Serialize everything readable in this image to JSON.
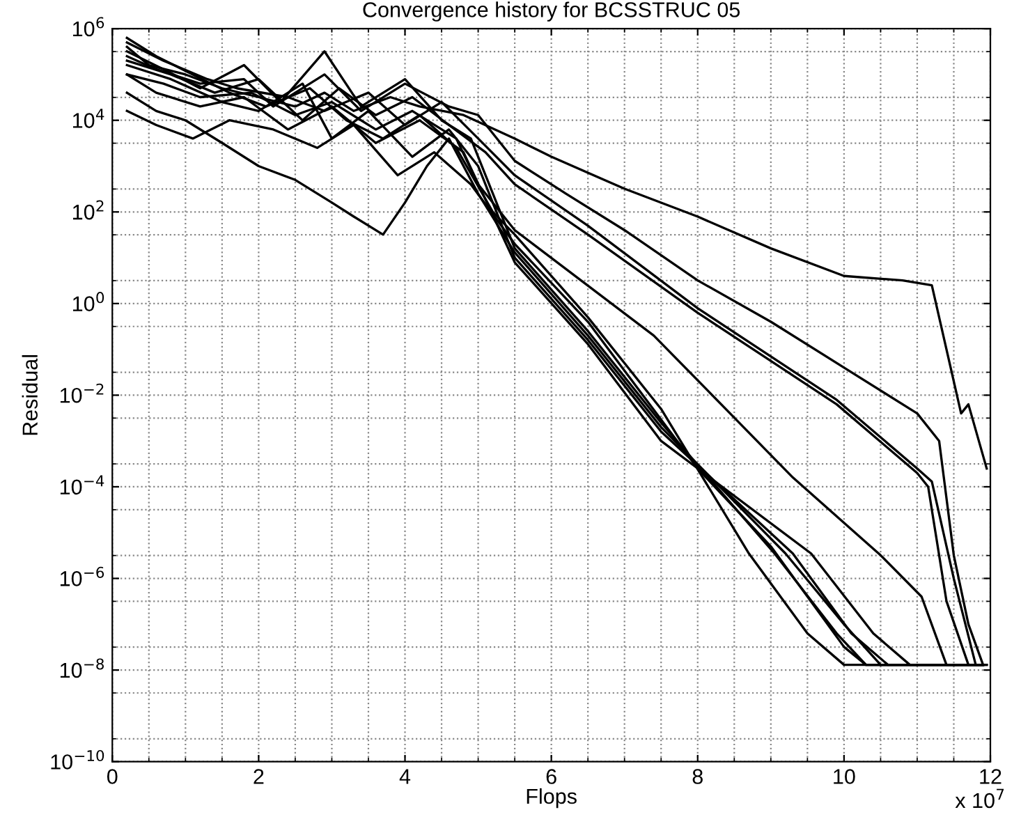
{
  "chart_data": {
    "type": "line",
    "title": "Convergence history for BCSSTRUC 05",
    "xlabel": "Flops",
    "ylabel": "Residual",
    "annotations": [
      "x 10$^{7}$"
    ],
    "log": "y",
    "grid": true,
    "line_style": "solid",
    "marker": "none",
    "xlim": [
      0,
      12
    ],
    "xticks": [
      0,
      2,
      4,
      6,
      8,
      10,
      12
    ],
    "ylim": [
      1e-10,
      1000000.0
    ],
    "yticks": [
      {
        "value": 1e-10,
        "label": "10$^{−10}$"
      },
      {
        "value": 1e-08,
        "label": "10$^{−8}$"
      },
      {
        "value": 1e-06,
        "label": "10$^{−6}$"
      },
      {
        "value": 0.0001,
        "label": "10$^{−4}$"
      },
      {
        "value": 0.01,
        "label": "10$^{−2}$"
      },
      {
        "value": 1,
        "label": "10$^{0}$"
      },
      {
        "value": 100,
        "label": "10$^{2}$"
      },
      {
        "value": 10000.0,
        "label": "10$^{4}$"
      },
      {
        "value": 1000000.0,
        "label": "10$^{6}$"
      }
    ],
    "series": [
      {
        "color": "#000000",
        "x": [
          0.2,
          0.5,
          1,
          1.5,
          2,
          2.5,
          2.9,
          3.3,
          3.8,
          4.2,
          4.8,
          5.5,
          6,
          7,
          8,
          9,
          10,
          10.8,
          11.2,
          11.4,
          11.6,
          11.7,
          11.95
        ],
        "values": [
          400000.0,
          160000.0,
          100000.0,
          50000.0,
          32000.0,
          20000.0,
          40000.0,
          16000.0,
          32000.0,
          20000.0,
          13000.0,
          4000.0,
          1600.0,
          320,
          79,
          16,
          4,
          3.2,
          2.5,
          0.1,
          0.004,
          0.0063,
          0.00025
        ]
      },
      {
        "color": "#000000",
        "x": [
          0.2,
          0.6,
          1.2,
          1.8,
          2.2,
          2.9,
          3.4,
          4.0,
          4.6,
          5.0,
          5.5,
          6.2,
          7,
          8,
          9,
          10,
          11,
          11.3,
          11.5,
          11.7,
          11.9
        ],
        "values": [
          250000.0,
          130000.0,
          63000.0,
          79000.0,
          20000.0,
          100000.0,
          16000.0,
          63000.0,
          20000.0,
          13000.0,
          1300.0,
          250,
          40,
          3.2,
          0.4,
          0.04,
          0.004,
          0.001,
          3.2e-06,
          1e-07,
          1.3e-08
        ]
      },
      {
        "color": "#000000",
        "x": [
          0.2,
          0.7,
          1.3,
          1.7,
          2.4,
          2.9,
          3.5,
          4.0,
          4.5,
          5.0,
          5.5,
          6.5,
          8,
          9.9,
          11.0,
          11.2,
          11.5,
          11.8,
          11.95
        ],
        "values": [
          500000.0,
          200000.0,
          79000.0,
          50000.0,
          32000.0,
          16000.0,
          40000.0,
          7900.0,
          25000.0,
          4000.0,
          630,
          50,
          0.79,
          0.0079,
          0.00025,
          0.00013,
          1e-06,
          1.3e-08,
          1.3e-08
        ]
      },
      {
        "color": "#000000",
        "x": [
          0.2,
          0.8,
          1.4,
          2.0,
          2.6,
          3.1,
          3.6,
          4.1,
          4.6,
          5.1,
          5.5,
          6.5,
          8,
          9.9,
          11.0,
          11.15,
          11.4,
          11.7,
          11.95
        ],
        "values": [
          200000.0,
          100000.0,
          40000.0,
          79000.0,
          10000.0,
          50000.0,
          13000.0,
          32000.0,
          7900.0,
          2000.0,
          400,
          32,
          0.63,
          0.0063,
          0.0002,
          0.0001,
          3.2e-07,
          1.3e-08,
          1.3e-08
        ]
      },
      {
        "color": "#000000",
        "x": [
          0.2,
          0.7,
          1.2,
          1.9,
          2.5,
          3.0,
          3.6,
          4.1,
          4.7,
          5.0,
          5.5,
          7.4,
          9.3,
          10.5,
          11.06,
          11.4,
          11.9
        ],
        "values": [
          100000.0,
          63000.0,
          32000.0,
          40000.0,
          13000.0,
          25000.0,
          6300.0,
          16000.0,
          4000.0,
          400,
          40,
          0.2,
          0.00016,
          3.2e-06,
          4e-07,
          1.3e-08,
          1.3e-08
        ]
      },
      {
        "color": "#000000",
        "x": [
          0.2,
          0.6,
          1.1,
          1.6,
          2.1,
          2.7,
          3.2,
          3.7,
          4.2,
          4.7,
          5.2,
          5.5,
          6.5,
          7.5,
          8.7,
          9.5,
          10.0,
          11.9
        ],
        "values": [
          630000.0,
          250000.0,
          100000.0,
          40000.0,
          20000.0,
          50000.0,
          10000.0,
          4000.0,
          13000.0,
          2500.0,
          100,
          32,
          0.5,
          0.005,
          3.5e-06,
          6.3e-08,
          1.3e-08,
          1.3e-08
        ]
      },
      {
        "color": "#000000",
        "x": [
          0.2,
          0.7,
          1.2,
          1.8,
          2.3,
          2.9,
          3.4,
          4.0,
          4.5,
          4.9,
          5.5,
          6.5,
          7.5,
          9.05,
          9.9,
          10.3,
          11.9
        ],
        "values": [
          320000.0,
          130000.0,
          50000.0,
          160000.0,
          25000.0,
          320000.0,
          20000.0,
          79000.0,
          10000.0,
          4000.0,
          16,
          0.25,
          0.0025,
          3.5e-06,
          6.3e-08,
          1.3e-08,
          1.3e-08
        ]
      },
      {
        "color": "#000000",
        "x": [
          0.2,
          0.8,
          1.5,
          2.0,
          2.6,
          3.0,
          3.5,
          4.1,
          4.6,
          5.0,
          5.5,
          6.5,
          7.5,
          9.3,
          10.1,
          10.6,
          11.9
        ],
        "values": [
          160000.0,
          79000.0,
          25000.0,
          16000.0,
          63000.0,
          4000.0,
          16000.0,
          1600.0,
          6300.0,
          1000.0,
          10,
          0.16,
          0.0016,
          3.5e-06,
          6.3e-08,
          1.3e-08,
          1.3e-08
        ]
      },
      {
        "color": "#000000",
        "x": [
          0.2,
          0.6,
          1.2,
          1.8,
          2.4,
          3.0,
          3.6,
          4.2,
          4.8,
          5.5,
          6.5,
          7.5,
          9.55,
          10.4,
          10.9,
          11.9
        ],
        "values": [
          100000.0,
          40000.0,
          20000.0,
          32000.0,
          6300.0,
          20000.0,
          3200.0,
          10000.0,
          2000.0,
          7.9,
          0.13,
          0.001,
          3.5e-06,
          6.3e-08,
          1.3e-08,
          1.3e-08
        ]
      },
      {
        "color": "#000000",
        "x": [
          0.2,
          0.6,
          1.0,
          1.5,
          2.0,
          2.5,
          3.0,
          3.3,
          3.7,
          4.0,
          4.3,
          4.6,
          5.0,
          5.5,
          6.5,
          7.5,
          9.2,
          10.0,
          10.5,
          11.9
        ],
        "values": [
          40000.0,
          16000.0,
          10000.0,
          3200.0,
          1000.0,
          500,
          160,
          79,
          32,
          160,
          1000.0,
          4000.0,
          250,
          13,
          0.2,
          0.002,
          3.5e-06,
          1e-07,
          1.3e-08,
          1.3e-08
        ]
      },
      {
        "color": "#000000",
        "x": [
          0.2,
          0.6,
          1.1,
          1.6,
          2.2,
          2.8,
          3.3,
          3.9,
          4.4,
          4.9,
          5.5,
          6.5,
          8.0,
          9.0,
          10.0,
          10.3,
          11.9
        ],
        "values": [
          16000.0,
          7900.0,
          4000.0,
          10000.0,
          6300.0,
          2500.0,
          7900.0,
          630,
          2000.0,
          400,
          20,
          0.4,
          0.00025,
          5e-06,
          3.2e-08,
          1.3e-08,
          1.3e-08
        ]
      }
    ]
  }
}
